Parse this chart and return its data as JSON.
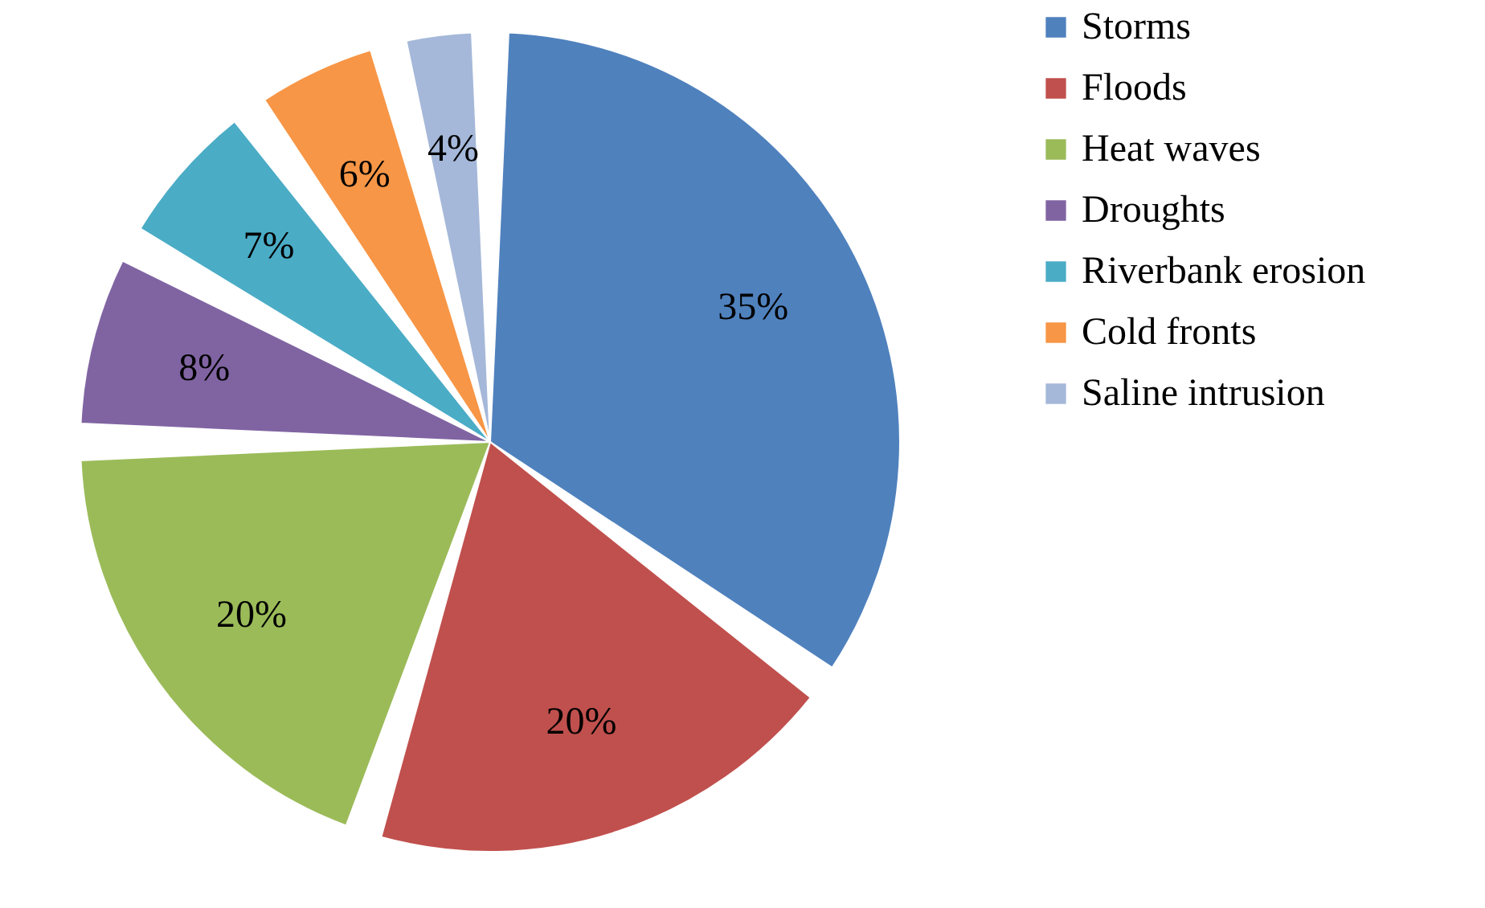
{
  "chart_data": {
    "type": "pie",
    "categories": [
      "Storms",
      "Floods",
      "Heat waves",
      "Droughts",
      "Riverbank erosion",
      "Cold fronts",
      "Saline intrusion"
    ],
    "values": [
      35,
      20,
      20,
      8,
      7,
      6,
      4
    ],
    "colors": [
      "#4f81bd",
      "#c0504d",
      "#9bbb59",
      "#8064a2",
      "#4bacc6",
      "#f79646",
      "#a5b8d9"
    ],
    "value_labels": [
      "35%",
      "20%",
      "20%",
      "8%",
      "7%",
      "6%",
      "4%"
    ],
    "legend": "right"
  }
}
